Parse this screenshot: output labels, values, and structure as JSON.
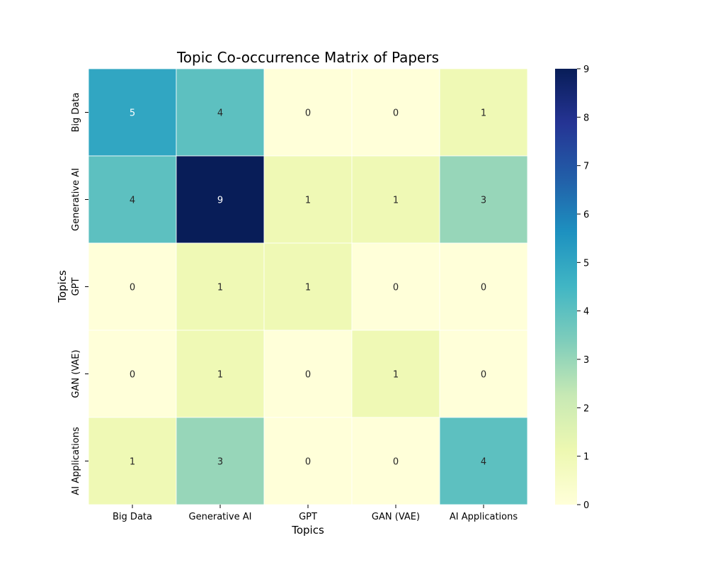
{
  "chart_data": {
    "type": "heatmap",
    "title": "Topic Co-occurrence Matrix of Papers",
    "xlabel": "Topics",
    "ylabel": "Topics",
    "x_categories": [
      "Big Data",
      "Generative AI",
      "GPT",
      "GAN (VAE)",
      "AI Applications"
    ],
    "y_categories": [
      "Big Data",
      "Generative AI",
      "GPT",
      "GAN (VAE)",
      "AI Applications"
    ],
    "values": [
      [
        5,
        4,
        0,
        0,
        1
      ],
      [
        4,
        9,
        1,
        1,
        3
      ],
      [
        0,
        1,
        1,
        0,
        0
      ],
      [
        0,
        1,
        0,
        1,
        0
      ],
      [
        1,
        3,
        0,
        0,
        4
      ]
    ],
    "colorbar": {
      "min": 0,
      "max": 9,
      "ticks": [
        "0",
        "1",
        "2",
        "3",
        "4",
        "5",
        "6",
        "7",
        "8",
        "9"
      ],
      "colormap": "YlGnBu"
    },
    "annotations": true,
    "grid": false
  }
}
